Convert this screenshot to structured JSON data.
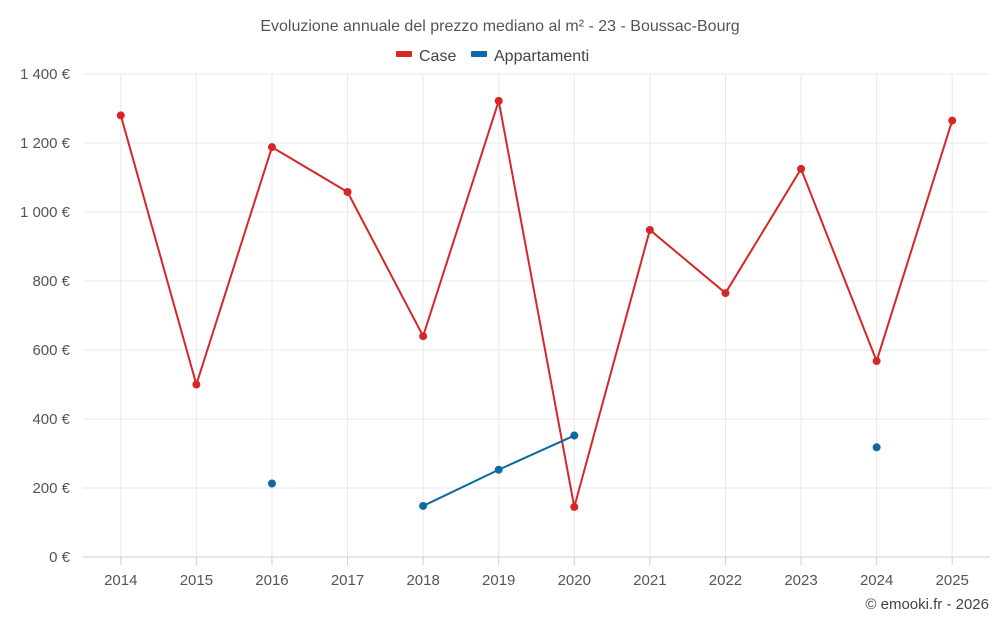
{
  "chart_data": {
    "type": "line",
    "title": "Evoluzione annuale del prezzo mediano al m² - 23 - Boussac-Bourg",
    "categories": [
      "2014",
      "2015",
      "2016",
      "2017",
      "2018",
      "2019",
      "2020",
      "2021",
      "2022",
      "2023",
      "2024",
      "2025"
    ],
    "series": [
      {
        "name": "Case",
        "color": "#d62728",
        "values": [
          1280,
          500,
          1188,
          1058,
          640,
          1322,
          145,
          948,
          765,
          1125,
          568,
          1265
        ]
      },
      {
        "name": "Appartamenti",
        "color": "#0a6aa1",
        "values": [
          null,
          null,
          213,
          null,
          148,
          253,
          352,
          null,
          null,
          null,
          318,
          null
        ]
      }
    ],
    "ylim": [
      0,
      1400
    ],
    "yticks": [
      {
        "value": 0,
        "label": "0 €"
      },
      {
        "value": 200,
        "label": "200 €"
      },
      {
        "value": 400,
        "label": "400 €"
      },
      {
        "value": 600,
        "label": "600 €"
      },
      {
        "value": 800,
        "label": "800 €"
      },
      {
        "value": 1000,
        "label": "1 000 €"
      },
      {
        "value": 1200,
        "label": "1 200 €"
      },
      {
        "value": 1400,
        "label": "1 400 €"
      }
    ],
    "xlabel": "",
    "ylabel": "",
    "grid": true,
    "legend_position": "top-center",
    "credit": "© emooki.fr - 2026"
  }
}
